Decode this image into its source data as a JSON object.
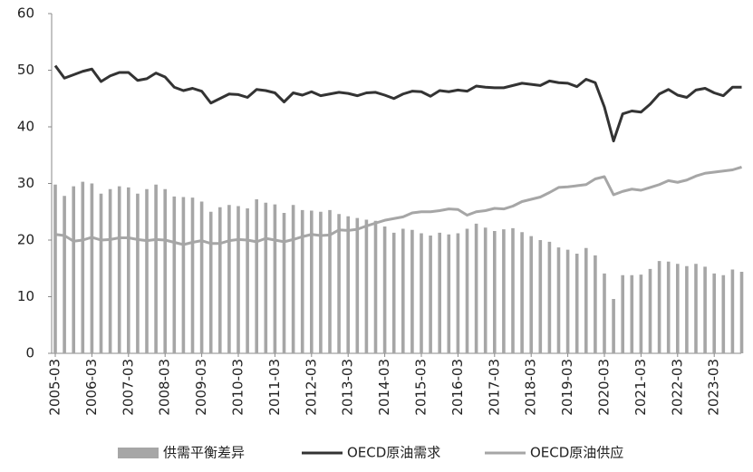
{
  "chart_data": {
    "type": "bar",
    "categories": [
      "2005-03",
      null,
      null,
      null,
      "2006-03",
      null,
      null,
      null,
      "2007-03",
      null,
      null,
      null,
      "2008-03",
      null,
      null,
      null,
      "2009-03",
      null,
      null,
      null,
      "2010-03",
      null,
      null,
      null,
      "2011-03",
      null,
      null,
      null,
      "2012-03",
      null,
      null,
      null,
      "2013-03",
      null,
      null,
      null,
      "2014-03",
      null,
      null,
      null,
      "2015-03",
      null,
      null,
      null,
      "2016-03",
      null,
      null,
      null,
      "2017-03",
      null,
      null,
      null,
      "2018-03",
      null,
      null,
      null,
      "2019-03",
      null,
      null,
      null,
      "2020-03",
      null,
      null,
      null,
      "2021-03",
      null,
      null,
      null,
      "2022-03",
      null,
      null,
      null,
      "2023-03",
      null,
      null,
      null
    ],
    "ylim": [
      0,
      60
    ],
    "yticks": [
      0,
      10,
      20,
      30,
      40,
      50,
      60
    ],
    "grid": false,
    "series": [
      {
        "name": "供需平衡差异",
        "type": "bar",
        "color": "#a6a6a6",
        "values": [
          29.8,
          27.8,
          29.5,
          30.3,
          30.0,
          28.2,
          29.0,
          29.5,
          29.3,
          28.2,
          29.0,
          29.8,
          29.0,
          27.7,
          27.6,
          27.5,
          26.8,
          25.0,
          25.8,
          26.2,
          26.0,
          25.6,
          27.2,
          26.6,
          26.3,
          24.8,
          26.2,
          25.3,
          25.2,
          25.0,
          25.3,
          24.6,
          24.2,
          23.9,
          23.6,
          23.4,
          22.4,
          21.3,
          22.0,
          21.8,
          21.2,
          20.8,
          21.3,
          21.0,
          21.2,
          22.0,
          22.9,
          22.2,
          21.6,
          21.9,
          22.1,
          21.4,
          20.7,
          20.0,
          19.7,
          18.7,
          18.3,
          17.6,
          18.6,
          17.3,
          14.1,
          9.6,
          13.8,
          13.8,
          13.9,
          14.9,
          16.3,
          16.2,
          15.8,
          15.4,
          15.8,
          15.3,
          14.1,
          13.8,
          14.8,
          14.4
        ]
      },
      {
        "name": "OECD原油需求",
        "type": "line",
        "color": "#333333",
        "values": [
          50.8,
          48.6,
          49.2,
          49.8,
          50.2,
          48.0,
          49.0,
          49.6,
          49.6,
          48.2,
          48.5,
          49.5,
          48.8,
          47.0,
          46.4,
          46.8,
          46.3,
          44.2,
          45.0,
          45.8,
          45.7,
          45.2,
          46.6,
          46.4,
          46.0,
          44.4,
          46.0,
          45.6,
          46.2,
          45.5,
          45.8,
          46.1,
          45.9,
          45.5,
          46.0,
          46.1,
          45.6,
          45.0,
          45.8,
          46.3,
          46.2,
          45.4,
          46.4,
          46.2,
          46.5,
          46.3,
          47.2,
          47.0,
          46.9,
          46.9,
          47.3,
          47.7,
          47.5,
          47.3,
          48.1,
          47.8,
          47.7,
          47.1,
          48.4,
          47.8,
          43.5,
          37.5,
          42.3,
          42.8,
          42.6,
          44.0,
          45.8,
          46.6,
          45.6,
          45.2,
          46.5,
          46.8,
          46.0,
          45.5,
          47.0,
          47.0
        ]
      },
      {
        "name": "OECD原油供应",
        "type": "line",
        "color": "#a6a6a6",
        "values": [
          21.0,
          20.8,
          19.8,
          20.0,
          20.5,
          20.0,
          20.1,
          20.4,
          20.4,
          20.1,
          19.9,
          20.1,
          20.0,
          19.6,
          19.2,
          19.6,
          19.9,
          19.4,
          19.4,
          19.9,
          20.1,
          20.0,
          19.7,
          20.3,
          20.0,
          19.7,
          20.1,
          20.6,
          21.0,
          20.8,
          20.9,
          21.8,
          21.7,
          21.9,
          22.5,
          23.0,
          23.5,
          23.8,
          24.1,
          24.8,
          25.0,
          25.0,
          25.2,
          25.5,
          25.4,
          24.4,
          25.0,
          25.2,
          25.6,
          25.5,
          26.0,
          26.8,
          27.2,
          27.6,
          28.4,
          29.3,
          29.4,
          29.6,
          29.8,
          30.8,
          31.2,
          28.0,
          28.6,
          29.0,
          28.8,
          29.3,
          29.8,
          30.5,
          30.2,
          30.6,
          31.3,
          31.8,
          32.0,
          32.2,
          32.4,
          32.9
        ]
      }
    ]
  }
}
